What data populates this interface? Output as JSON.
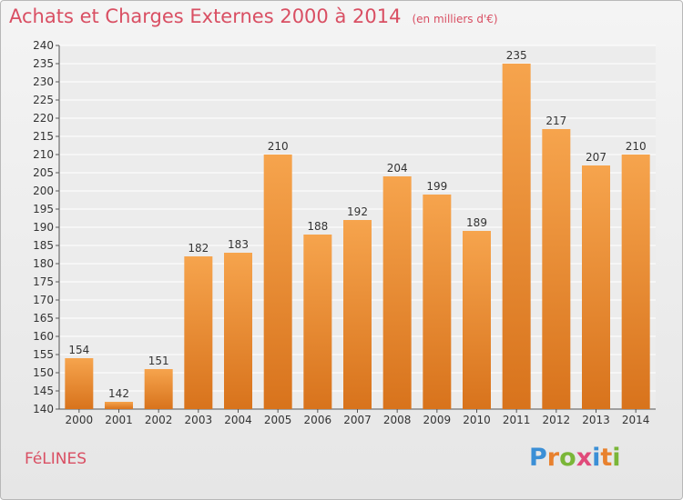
{
  "header": {
    "title": "Achats et Charges Externes 2000 à 2014",
    "unit": "(en milliers d'€)"
  },
  "commune": "FéLINES",
  "logo": {
    "letters": [
      "P",
      "r",
      "o",
      "x",
      "i",
      "t",
      "i"
    ],
    "colors": [
      "#3b8fd6",
      "#e8812e",
      "#7ab638",
      "#e04a7a",
      "#3b8fd6",
      "#e8812e",
      "#7ab638"
    ]
  },
  "chart_data": {
    "type": "bar",
    "categories": [
      "2000",
      "2001",
      "2002",
      "2003",
      "2004",
      "2005",
      "2006",
      "2007",
      "2008",
      "2009",
      "2010",
      "2011",
      "2012",
      "2013",
      "2014"
    ],
    "values": [
      154,
      142,
      151,
      182,
      183,
      210,
      188,
      192,
      204,
      199,
      189,
      235,
      217,
      207,
      210
    ],
    "ylim": [
      140,
      240
    ],
    "yticks": [
      140,
      145,
      150,
      155,
      160,
      165,
      170,
      175,
      180,
      185,
      190,
      195,
      200,
      205,
      210,
      215,
      220,
      225,
      230,
      235,
      240
    ],
    "grid": true,
    "bar_color": "#f0913a",
    "title": "Achats et Charges Externes 2000 à 2014",
    "xlabel": "",
    "ylabel": ""
  }
}
